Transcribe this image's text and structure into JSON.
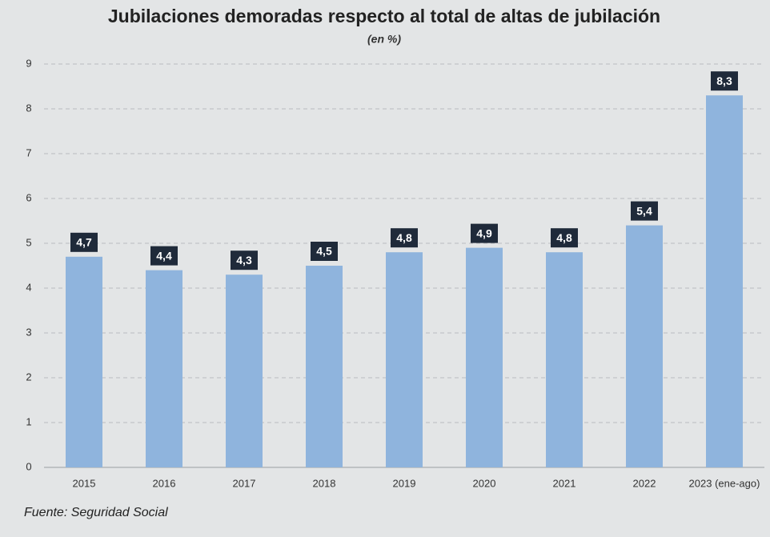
{
  "chart_data": {
    "type": "bar",
    "title": "Jubilaciones demoradas respecto al total de altas de jubilación",
    "subtitle": "(en %)",
    "source": "Fuente: Seguridad Social",
    "categories": [
      "2015",
      "2016",
      "2017",
      "2018",
      "2019",
      "2020",
      "2021",
      "2022",
      "2023 (ene-ago)"
    ],
    "values": [
      4.7,
      4.4,
      4.3,
      4.5,
      4.8,
      4.9,
      4.8,
      5.4,
      8.3
    ],
    "value_labels": [
      "4,7",
      "4,4",
      "4,3",
      "4,5",
      "4,8",
      "4,9",
      "4,8",
      "5,4",
      "8,3"
    ],
    "color": "#8fb4dd",
    "ylim": [
      0,
      9
    ],
    "yticks": [
      0,
      1,
      2,
      3,
      4,
      5,
      6,
      7,
      8,
      9
    ],
    "grid": true
  }
}
